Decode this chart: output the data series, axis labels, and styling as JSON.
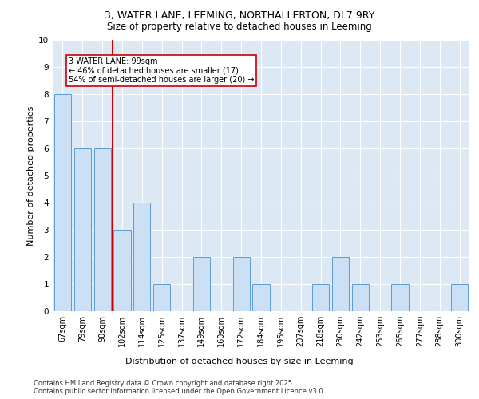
{
  "title_line1": "3, WATER LANE, LEEMING, NORTHALLERTON, DL7 9RY",
  "title_line2": "Size of property relative to detached houses in Leeming",
  "xlabel": "Distribution of detached houses by size in Leeming",
  "ylabel": "Number of detached properties",
  "footer": "Contains HM Land Registry data © Crown copyright and database right 2025.\nContains public sector information licensed under the Open Government Licence v3.0.",
  "categories": [
    "67sqm",
    "79sqm",
    "90sqm",
    "102sqm",
    "114sqm",
    "125sqm",
    "137sqm",
    "149sqm",
    "160sqm",
    "172sqm",
    "184sqm",
    "195sqm",
    "207sqm",
    "218sqm",
    "230sqm",
    "242sqm",
    "253sqm",
    "265sqm",
    "277sqm",
    "288sqm",
    "300sqm"
  ],
  "values": [
    8,
    6,
    6,
    3,
    4,
    1,
    0,
    2,
    0,
    2,
    1,
    0,
    0,
    1,
    2,
    1,
    0,
    1,
    0,
    0,
    1
  ],
  "bar_color": "#cce0f5",
  "bar_edge_color": "#5b9bd5",
  "background_color": "#dce9f5",
  "grid_color": "#ffffff",
  "redline_x": 2.5,
  "annotation_text": "3 WATER LANE: 99sqm\n← 46% of detached houses are smaller (17)\n54% of semi-detached houses are larger (20) →",
  "annotation_box_color": "#ffffff",
  "annotation_box_edge": "#cc0000",
  "redline_color": "#cc0000",
  "ylim": [
    0,
    10
  ],
  "yticks": [
    0,
    1,
    2,
    3,
    4,
    5,
    6,
    7,
    8,
    9,
    10
  ],
  "title1_fontsize": 9,
  "title2_fontsize": 8.5,
  "ylabel_fontsize": 8,
  "xlabel_fontsize": 8,
  "tick_fontsize": 7,
  "footer_fontsize": 6,
  "annot_fontsize": 7
}
